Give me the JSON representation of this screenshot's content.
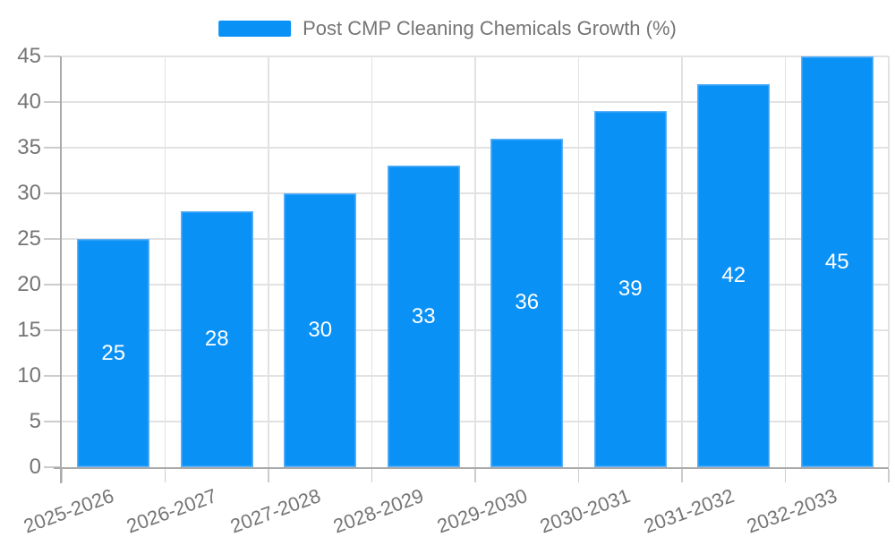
{
  "chart_data": {
    "type": "bar",
    "title": "Post CMP Cleaning Chemicals Growth (%)",
    "legend_label": "Post CMP Cleaning Chemicals Growth (%)",
    "legend_position": "top-center",
    "categories": [
      "2025-2026",
      "2026-2027",
      "2027-2028",
      "2028-2029",
      "2029-2030",
      "2030-2031",
      "2031-2032",
      "2032-2033"
    ],
    "values": [
      25,
      28,
      30,
      33,
      36,
      39,
      42,
      45
    ],
    "value_labels": [
      "25",
      "28",
      "30",
      "33",
      "36",
      "39",
      "42",
      "45"
    ],
    "xlabel": "",
    "ylabel": "",
    "ylim": [
      0,
      45
    ],
    "yticks": [
      0,
      5,
      10,
      15,
      20,
      25,
      30,
      35,
      40,
      45
    ],
    "grid": true,
    "colors": {
      "bar_fill": "#0a91f6",
      "bar_edge": "#5bb1f8",
      "value_label": "#ffffff",
      "axis_line": "#aaaaaa",
      "tick_mark": "#cccccc",
      "grid_line": "#e2e2e2",
      "text": "#757575",
      "background": "#ffffff"
    }
  }
}
